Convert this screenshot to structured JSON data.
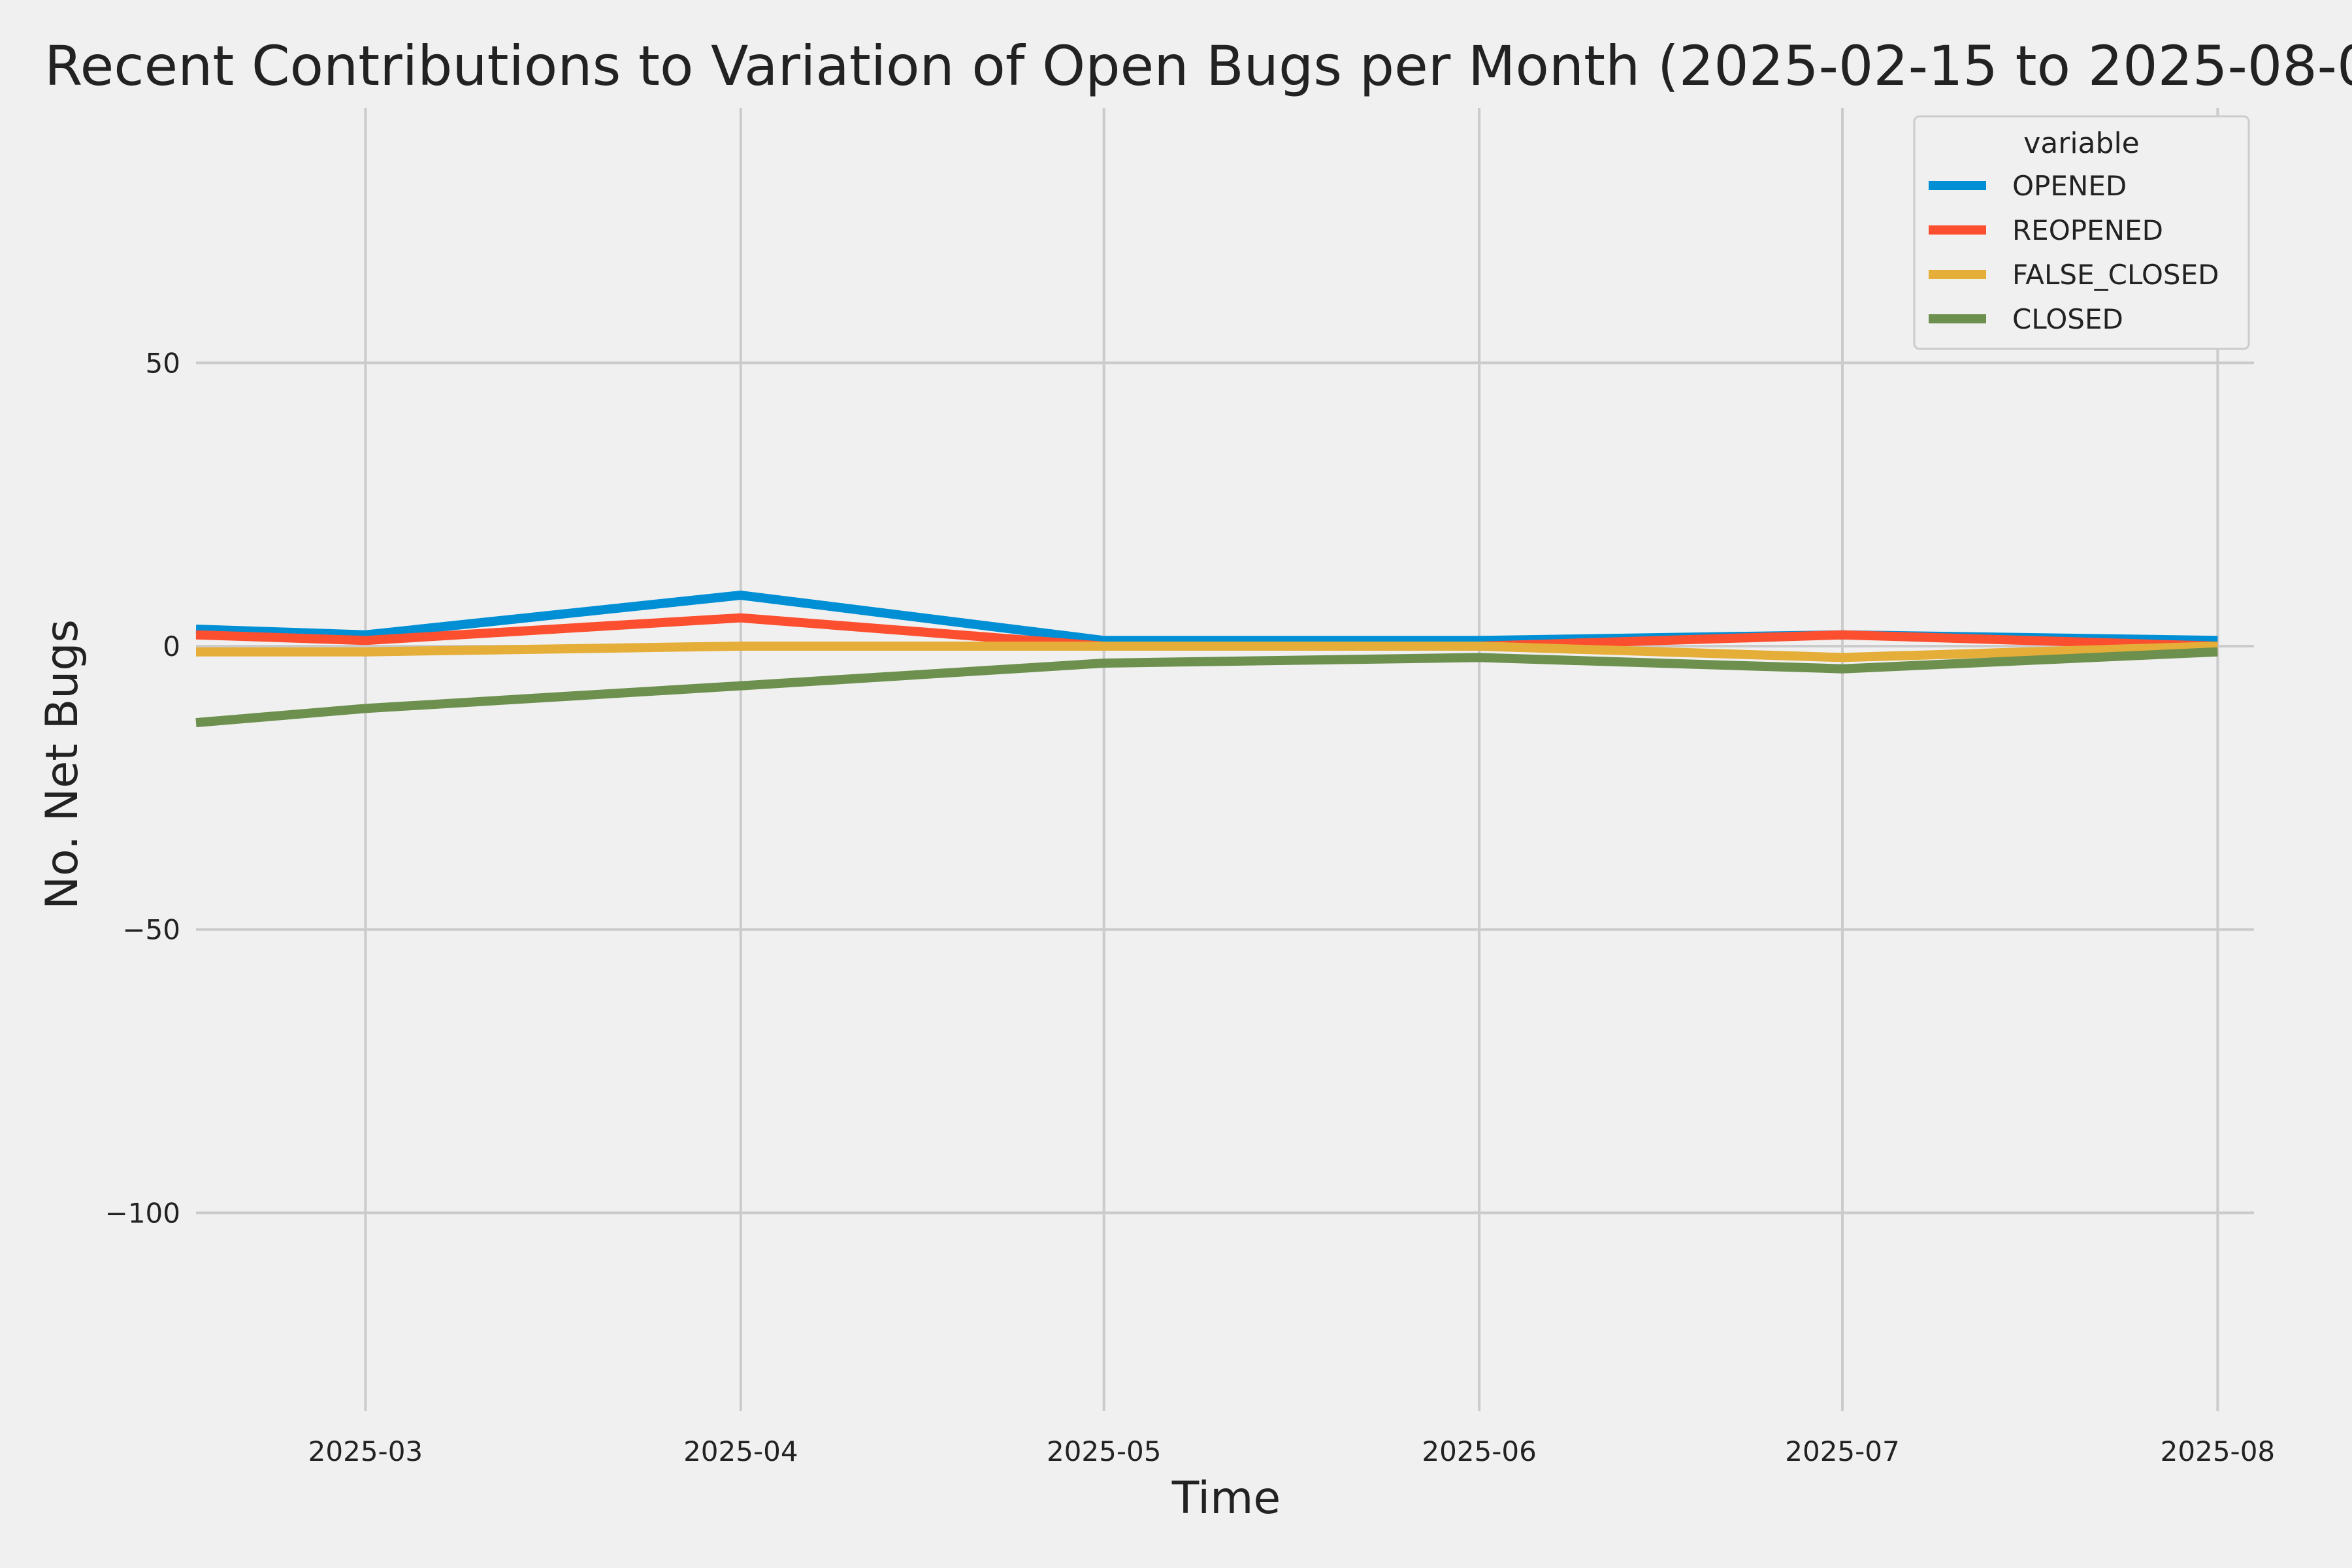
{
  "chart_data": {
    "type": "line",
    "title": "Recent Contributions to Variation of Open Bugs per Month (2025-02-15 to 2025-08-0",
    "xlabel": "Time",
    "ylabel": "No. Net Bugs",
    "x": [
      "2025-02-15",
      "2025-03-01",
      "2025-04-01",
      "2025-05-01",
      "2025-06-01",
      "2025-07-01",
      "2025-08-01"
    ],
    "xlim": [
      "2025-02-15",
      "2025-08-04"
    ],
    "ylim": [
      -135,
      95
    ],
    "xticks": [
      "2025-03",
      "2025-04",
      "2025-05",
      "2025-06",
      "2025-07",
      "2025-08"
    ],
    "xtick_values": [
      "2025-03-01",
      "2025-04-01",
      "2025-05-01",
      "2025-06-01",
      "2025-07-01",
      "2025-08-01"
    ],
    "yticks": [
      50,
      0,
      -50,
      -100
    ],
    "ytick_labels": [
      "50",
      "0",
      "−50",
      "−100"
    ],
    "grid": true,
    "legend": {
      "title": "variable",
      "position": "top-right"
    },
    "series": [
      {
        "name": "OPENED",
        "color": "#008fd5",
        "values": [
          3,
          2,
          9,
          1,
          1,
          2,
          1
        ]
      },
      {
        "name": "REOPENED",
        "color": "#fc4f30",
        "values": [
          2,
          1,
          5,
          0,
          0,
          2,
          0
        ]
      },
      {
        "name": "FALSE_CLOSED",
        "color": "#e5ae38",
        "values": [
          -1,
          -1,
          0,
          0,
          0,
          -2,
          0
        ]
      },
      {
        "name": "CLOSED",
        "color": "#6d904f",
        "values": [
          -13.5,
          -11,
          -7,
          -3,
          -2,
          -4,
          -1
        ]
      }
    ]
  }
}
